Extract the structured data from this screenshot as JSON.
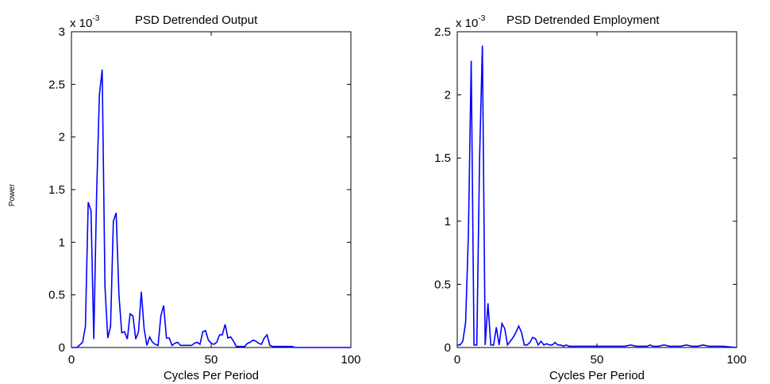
{
  "chart_data": [
    {
      "type": "line",
      "title": "PSD Detrended Output",
      "xlabel": "Cycles Per Period",
      "ylabel": "Power",
      "exponent_label": "x 10",
      "exponent_power": "-3",
      "xlim": [
        0,
        100
      ],
      "ylim": [
        0,
        3
      ],
      "xticks": [
        "0",
        "50",
        "100"
      ],
      "yticks": [
        "0",
        "0.5",
        "1",
        "1.5",
        "2",
        "2.5",
        "3"
      ],
      "color": "#0000ff",
      "series": [
        {
          "x": [
            0,
            2,
            4,
            5,
            6,
            7,
            8,
            9,
            10,
            11,
            12,
            13,
            14,
            15,
            16,
            17,
            18,
            19,
            20,
            21,
            22,
            23,
            24,
            25,
            26,
            27,
            28,
            29,
            30,
            31,
            32,
            33,
            34,
            35,
            36,
            37,
            38,
            39,
            40,
            42,
            43,
            44,
            45,
            46,
            47,
            48,
            49,
            50,
            51,
            52,
            53,
            54,
            55,
            56,
            57,
            58,
            59,
            60,
            61,
            62,
            63,
            64,
            65,
            66,
            67,
            68,
            69,
            70,
            71,
            72,
            73,
            74,
            75,
            76,
            77,
            78,
            79,
            80,
            81,
            82,
            83,
            84,
            85,
            86,
            87,
            88,
            89,
            90,
            91,
            92,
            93,
            94,
            95,
            96,
            97,
            98,
            99,
            100
          ],
          "values": [
            0,
            0,
            0.05,
            0.2,
            1.38,
            1.3,
            0.08,
            1.45,
            2.4,
            2.64,
            0.58,
            0.09,
            0.2,
            1.2,
            1.28,
            0.5,
            0.14,
            0.15,
            0.08,
            0.32,
            0.3,
            0.08,
            0.15,
            0.53,
            0.18,
            0.02,
            0.1,
            0.05,
            0.03,
            0.02,
            0.3,
            0.4,
            0.09,
            0.09,
            0.02,
            0.04,
            0.05,
            0.02,
            0.02,
            0.02,
            0.02,
            0.04,
            0.05,
            0.03,
            0.15,
            0.16,
            0.07,
            0.04,
            0.03,
            0.05,
            0.12,
            0.12,
            0.22,
            0.09,
            0.1,
            0.06,
            0.01,
            0.01,
            0.01,
            0.01,
            0.04,
            0.05,
            0.07,
            0.06,
            0.04,
            0.03,
            0.09,
            0.12,
            0.02,
            0.01,
            0.01,
            0.01,
            0.01,
            0.01,
            0.01,
            0.01,
            0.01,
            0,
            0,
            0,
            0,
            0,
            0,
            0,
            0,
            0,
            0,
            0,
            0,
            0,
            0,
            0,
            0,
            0,
            0,
            0,
            0,
            0
          ]
        }
      ]
    },
    {
      "type": "line",
      "title": "PSD Detrended Employment",
      "xlabel": "Cycles Per Period",
      "ylabel": "",
      "exponent_label": "x 10",
      "exponent_power": "-3",
      "xlim": [
        0,
        100
      ],
      "ylim": [
        0,
        2.5
      ],
      "xticks": [
        "0",
        "50",
        "100"
      ],
      "yticks": [
        "0",
        "0.5",
        "1",
        "1.5",
        "2",
        "2.5"
      ],
      "color": "#0000ff",
      "series": [
        {
          "x": [
            0,
            1,
            2,
            3,
            4,
            5,
            6,
            7,
            8,
            9,
            10,
            11,
            12,
            13,
            14,
            15,
            16,
            17,
            18,
            19,
            20,
            21,
            22,
            23,
            24,
            25,
            26,
            27,
            28,
            29,
            30,
            31,
            32,
            33,
            34,
            35,
            36,
            37,
            38,
            39,
            40,
            42,
            44,
            46,
            48,
            50,
            55,
            60,
            62,
            64,
            66,
            68,
            69,
            70,
            72,
            74,
            76,
            78,
            80,
            82,
            84,
            86,
            88,
            90,
            92,
            95,
            100
          ],
          "values": [
            0.02,
            0.02,
            0.05,
            0.2,
            0.9,
            2.27,
            0.02,
            0.02,
            1.5,
            2.39,
            0.02,
            0.35,
            0.02,
            0.02,
            0.16,
            0.02,
            0.19,
            0.15,
            0.02,
            0.05,
            0.08,
            0.12,
            0.17,
            0.12,
            0.02,
            0.02,
            0.04,
            0.08,
            0.07,
            0.02,
            0.05,
            0.02,
            0.03,
            0.02,
            0.02,
            0.04,
            0.02,
            0.02,
            0.01,
            0.02,
            0.01,
            0.01,
            0.01,
            0.01,
            0.01,
            0.01,
            0.01,
            0.01,
            0.02,
            0.01,
            0.01,
            0.01,
            0.02,
            0.01,
            0.01,
            0.02,
            0.01,
            0.01,
            0.01,
            0.02,
            0.01,
            0.01,
            0.02,
            0.01,
            0.01,
            0.01,
            0
          ]
        }
      ]
    }
  ]
}
